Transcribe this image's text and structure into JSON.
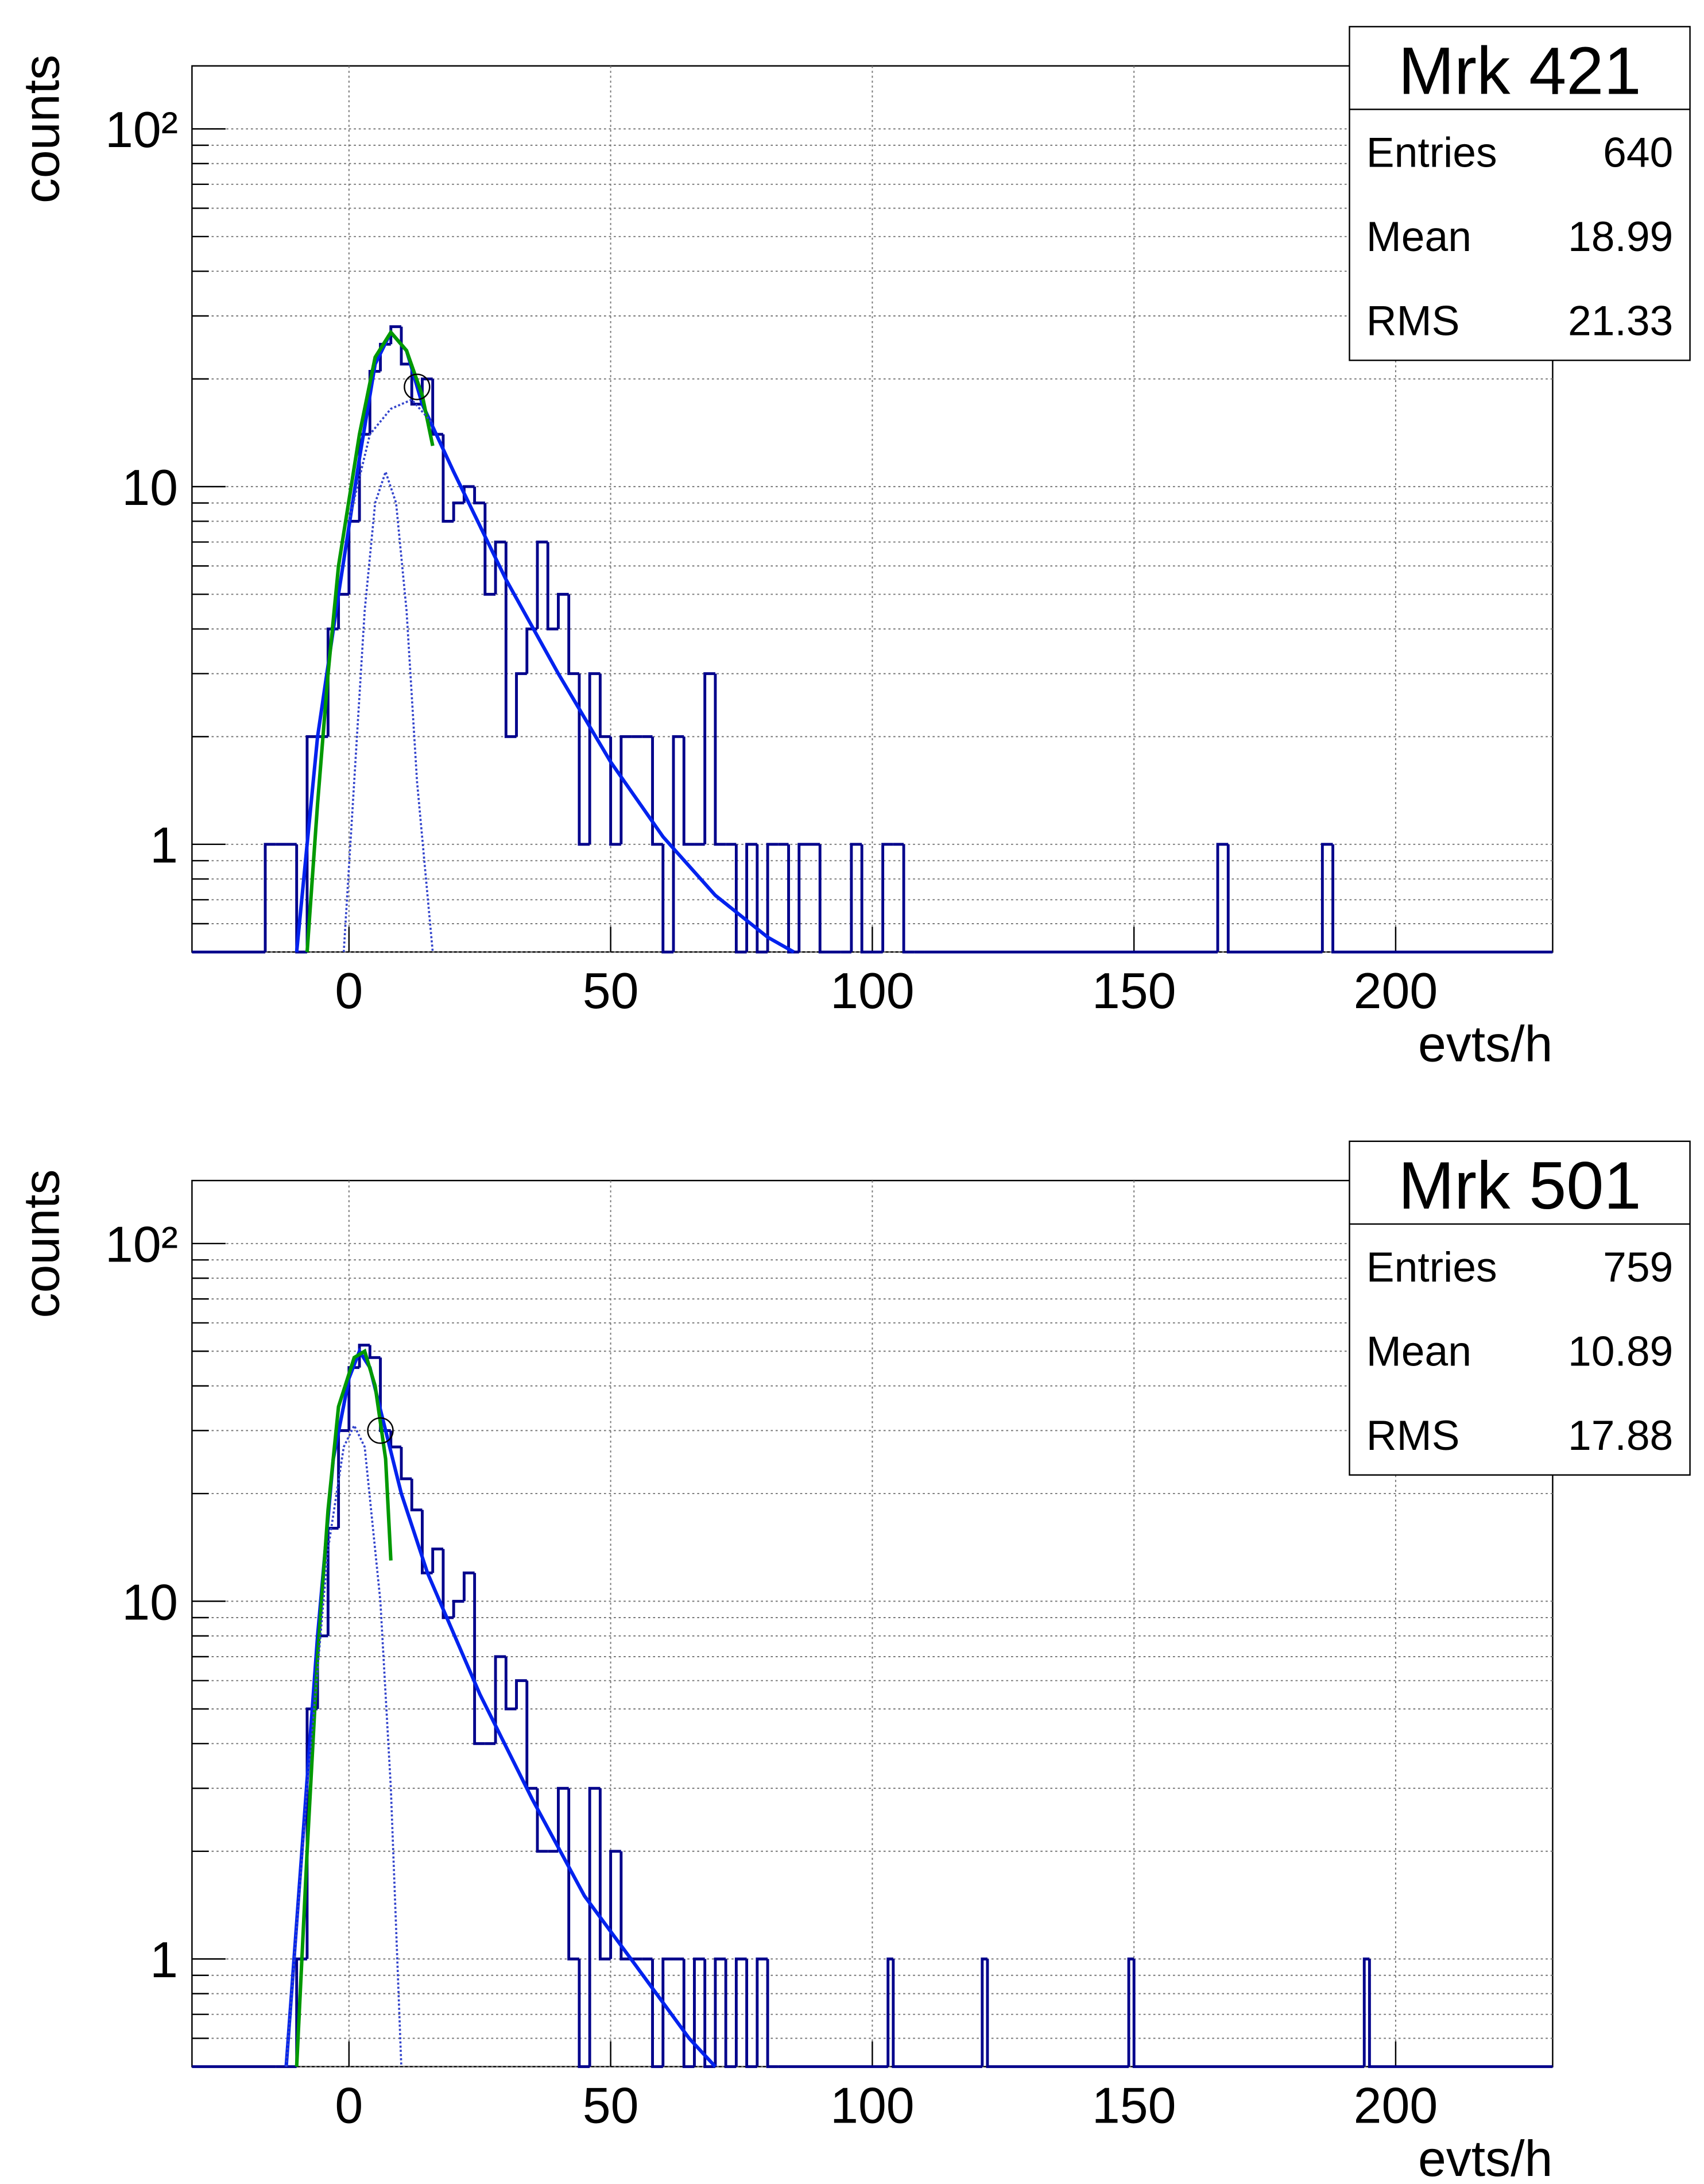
{
  "chart_data": [
    {
      "type": "histogram",
      "title": "Mrk 421",
      "x_label": "evts/h",
      "y_label": "counts",
      "stats": {
        "labels": [
          "Entries",
          "Mean",
          "RMS"
        ],
        "values": [
          640,
          18.99,
          21.33
        ]
      },
      "bins": [
        -30,
        -16,
        -14,
        -12,
        -10,
        -8,
        -6,
        -4,
        -2,
        0,
        2,
        4,
        6,
        8,
        10,
        12,
        14,
        16,
        18,
        20,
        22,
        24,
        26,
        28,
        30,
        32,
        34,
        36,
        38,
        40,
        42,
        44,
        46,
        48,
        50,
        52,
        54,
        56,
        58,
        60,
        62,
        64,
        66,
        68,
        70,
        72,
        74,
        76,
        78,
        80,
        82,
        84,
        86,
        88,
        90,
        92,
        94,
        96,
        98,
        100,
        102,
        104,
        106,
        108,
        110,
        166,
        168,
        186,
        188,
        230
      ],
      "counts": [
        0,
        1,
        1,
        1,
        0,
        2,
        2,
        4,
        5,
        8,
        14,
        21,
        25,
        28,
        22,
        17,
        20,
        14,
        8,
        9,
        10,
        9,
        5,
        7,
        2,
        3,
        4,
        7,
        4,
        5,
        3,
        1,
        3,
        2,
        1,
        2,
        2,
        2,
        1,
        0,
        2,
        1,
        1,
        3,
        1,
        1,
        0,
        1,
        0,
        1,
        1,
        0,
        1,
        1,
        0,
        0,
        0,
        1,
        0,
        0,
        1,
        1,
        0,
        0,
        0,
        1,
        0,
        1,
        0
      ],
      "color": "#00008b",
      "lines": [
        {
          "x": [
            -10,
            -6,
            -2,
            2,
            5,
            8,
            11,
            14,
            20,
            30,
            40,
            50,
            60,
            70,
            80,
            85
          ],
          "values": [
            0.5,
            2,
            5,
            12,
            22,
            27,
            24,
            17,
            11,
            5.5,
            3,
            1.7,
            1.05,
            0.72,
            0.55,
            0.5
          ],
          "color": "#0022ee",
          "style": "solid"
        },
        {
          "x": [
            -8,
            -6,
            -4,
            -2,
            2,
            5,
            8,
            11,
            14,
            16
          ],
          "values": [
            0.5,
            1.3,
            3,
            6,
            14,
            23,
            27,
            24,
            18,
            13
          ],
          "color": "#009900",
          "style": "solid"
        },
        {
          "x": [
            -1,
            1,
            3,
            5,
            7,
            9,
            11,
            13,
            16
          ],
          "values": [
            0.5,
            1.5,
            4.5,
            9,
            11,
            9,
            4.5,
            1.5,
            0.5
          ],
          "color": "#3344cc",
          "style": "dotted"
        },
        {
          "x": [
            0,
            4,
            8,
            12,
            16
          ],
          "values": [
            8,
            14,
            16.5,
            17.5,
            15
          ],
          "color": "#3344cc",
          "style": "dotted"
        }
      ],
      "markers": {
        "x": [
          13
        ],
        "values": [
          19
        ]
      },
      "xlim": [
        -30,
        230
      ],
      "xticks": [
        0,
        50,
        100,
        150,
        200
      ],
      "ylim": [
        0.5,
        150
      ],
      "yticks": [
        1,
        10,
        {
          "value": 100,
          "label": "10²"
        }
      ],
      "log_y": true,
      "grid": true
    },
    {
      "type": "histogram",
      "title": "Mrk 501",
      "x_label": "evts/h",
      "y_label": "counts",
      "stats": {
        "labels": [
          "Entries",
          "Mean",
          "RMS"
        ],
        "values": [
          759,
          10.89,
          17.88
        ]
      },
      "bins": [
        -30,
        -14,
        -12,
        -10,
        -8,
        -6,
        -4,
        -2,
        0,
        2,
        4,
        6,
        8,
        10,
        12,
        14,
        16,
        18,
        20,
        22,
        24,
        26,
        28,
        30,
        32,
        34,
        36,
        38,
        40,
        42,
        44,
        46,
        48,
        50,
        52,
        54,
        56,
        58,
        60,
        62,
        64,
        66,
        68,
        70,
        72,
        74,
        76,
        78,
        80,
        82,
        103,
        104,
        121,
        122,
        149,
        150,
        194,
        195,
        230
      ],
      "counts": [
        0,
        0,
        0,
        1,
        5,
        8,
        16,
        30,
        45,
        52,
        48,
        30,
        27,
        22,
        18,
        12,
        14,
        9,
        10,
        12,
        4,
        4,
        7,
        5,
        6,
        3,
        2,
        2,
        3,
        1,
        0,
        3,
        1,
        2,
        1,
        1,
        1,
        0,
        1,
        1,
        0,
        1,
        0,
        1,
        0,
        1,
        0,
        1,
        0,
        0,
        1,
        0,
        1,
        0,
        1,
        0,
        1,
        0
      ],
      "color": "#00008b",
      "lines": [
        {
          "x": [
            -12,
            -9,
            -6,
            -3,
            0,
            2,
            4,
            7,
            10,
            15,
            25,
            35,
            45,
            55,
            65,
            70
          ],
          "values": [
            0.5,
            2,
            8,
            25,
            42,
            50,
            45,
            30,
            20,
            12,
            5.5,
            2.8,
            1.5,
            0.95,
            0.6,
            0.5
          ],
          "color": "#0022ee",
          "style": "solid"
        },
        {
          "x": [
            -10,
            -8,
            -6,
            -4,
            -2,
            1,
            3,
            5,
            7,
            8
          ],
          "values": [
            0.5,
            2,
            7,
            18,
            35,
            48,
            50,
            40,
            25,
            13
          ],
          "color": "#009900",
          "style": "solid"
        },
        {
          "x": [
            -12,
            -8,
            -4,
            -1,
            1,
            3,
            6,
            8,
            10
          ],
          "values": [
            0.5,
            3,
            14,
            27,
            31,
            27,
            10,
            3,
            0.5
          ],
          "color": "#3344cc",
          "style": "dotted"
        }
      ],
      "markers": {
        "x": [
          6
        ],
        "values": [
          30
        ]
      },
      "xlim": [
        -30,
        230
      ],
      "xticks": [
        0,
        50,
        100,
        150,
        200
      ],
      "ylim": [
        0.5,
        150
      ],
      "yticks": [
        1,
        10,
        {
          "value": 100,
          "label": "10²"
        }
      ],
      "log_y": true,
      "grid": true
    }
  ]
}
